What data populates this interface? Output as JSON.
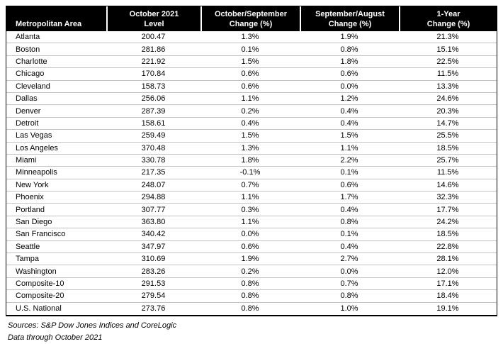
{
  "table": {
    "columns": [
      {
        "line1": "",
        "line2": "Metropolitan Area"
      },
      {
        "line1": "October 2021",
        "line2": "Level"
      },
      {
        "line1": "October/September",
        "line2": "Change (%)"
      },
      {
        "line1": "September/August",
        "line2": "Change (%)"
      },
      {
        "line1": "1-Year",
        "line2": "Change (%)"
      }
    ],
    "rows": [
      {
        "area": "Atlanta",
        "level": "200.47",
        "oct_sep": "1.3%",
        "sep_aug": "1.9%",
        "one_year": "21.3%"
      },
      {
        "area": "Boston",
        "level": "281.86",
        "oct_sep": "0.1%",
        "sep_aug": "0.8%",
        "one_year": "15.1%"
      },
      {
        "area": "Charlotte",
        "level": "221.92",
        "oct_sep": "1.5%",
        "sep_aug": "1.8%",
        "one_year": "22.5%"
      },
      {
        "area": "Chicago",
        "level": "170.84",
        "oct_sep": "0.6%",
        "sep_aug": "0.6%",
        "one_year": "11.5%"
      },
      {
        "area": "Cleveland",
        "level": "158.73",
        "oct_sep": "0.6%",
        "sep_aug": "0.0%",
        "one_year": "13.3%"
      },
      {
        "area": "Dallas",
        "level": "256.06",
        "oct_sep": "1.1%",
        "sep_aug": "1.2%",
        "one_year": "24.6%"
      },
      {
        "area": "Denver",
        "level": "287.39",
        "oct_sep": "0.2%",
        "sep_aug": "0.4%",
        "one_year": "20.3%"
      },
      {
        "area": "Detroit",
        "level": "158.61",
        "oct_sep": "0.4%",
        "sep_aug": "0.4%",
        "one_year": "14.7%"
      },
      {
        "area": "Las Vegas",
        "level": "259.49",
        "oct_sep": "1.5%",
        "sep_aug": "1.5%",
        "one_year": "25.5%"
      },
      {
        "area": "Los Angeles",
        "level": "370.48",
        "oct_sep": "1.3%",
        "sep_aug": "1.1%",
        "one_year": "18.5%"
      },
      {
        "area": "Miami",
        "level": "330.78",
        "oct_sep": "1.8%",
        "sep_aug": "2.2%",
        "one_year": "25.7%"
      },
      {
        "area": "Minneapolis",
        "level": "217.35",
        "oct_sep": "-0.1%",
        "sep_aug": "0.1%",
        "one_year": "11.5%"
      },
      {
        "area": "New York",
        "level": "248.07",
        "oct_sep": "0.7%",
        "sep_aug": "0.6%",
        "one_year": "14.6%"
      },
      {
        "area": "Phoenix",
        "level": "294.88",
        "oct_sep": "1.1%",
        "sep_aug": "1.7%",
        "one_year": "32.3%"
      },
      {
        "area": "Portland",
        "level": "307.77",
        "oct_sep": "0.3%",
        "sep_aug": "0.4%",
        "one_year": "17.7%"
      },
      {
        "area": "San Diego",
        "level": "363.80",
        "oct_sep": "1.1%",
        "sep_aug": "0.8%",
        "one_year": "24.2%"
      },
      {
        "area": "San Francisco",
        "level": "340.42",
        "oct_sep": "0.0%",
        "sep_aug": "0.1%",
        "one_year": "18.5%"
      },
      {
        "area": "Seattle",
        "level": "347.97",
        "oct_sep": "0.6%",
        "sep_aug": "0.4%",
        "one_year": "22.8%"
      },
      {
        "area": "Tampa",
        "level": "310.69",
        "oct_sep": "1.9%",
        "sep_aug": "2.7%",
        "one_year": "28.1%"
      },
      {
        "area": "Washington",
        "level": "283.26",
        "oct_sep": "0.2%",
        "sep_aug": "0.0%",
        "one_year": "12.0%"
      },
      {
        "area": "Composite-10",
        "level": "291.53",
        "oct_sep": "0.8%",
        "sep_aug": "0.7%",
        "one_year": "17.1%"
      },
      {
        "area": "Composite-20",
        "level": "279.54",
        "oct_sep": "0.8%",
        "sep_aug": "0.8%",
        "one_year": "18.4%"
      },
      {
        "area": "U.S. National",
        "level": "273.76",
        "oct_sep": "0.8%",
        "sep_aug": "1.0%",
        "one_year": "19.1%"
      }
    ]
  },
  "footer": {
    "sources": "Sources: S&P Dow Jones Indices and CoreLogic",
    "data_through": "Data through October 2021"
  },
  "colors": {
    "header_bg": "#000000",
    "header_text": "#ffffff",
    "row_divider": "#c4c4c4",
    "table_border": "#000000"
  },
  "chart_data": {
    "type": "table",
    "categories": [
      "Atlanta",
      "Boston",
      "Charlotte",
      "Chicago",
      "Cleveland",
      "Dallas",
      "Denver",
      "Detroit",
      "Las Vegas",
      "Los Angeles",
      "Miami",
      "Minneapolis",
      "New York",
      "Phoenix",
      "Portland",
      "San Diego",
      "San Francisco",
      "Seattle",
      "Tampa",
      "Washington",
      "Composite-10",
      "Composite-20",
      "U.S. National"
    ],
    "series": [
      {
        "name": "October 2021 Level",
        "values": [
          200.47,
          281.86,
          221.92,
          170.84,
          158.73,
          256.06,
          287.39,
          158.61,
          259.49,
          370.48,
          330.78,
          217.35,
          248.07,
          294.88,
          307.77,
          363.8,
          340.42,
          347.97,
          310.69,
          283.26,
          291.53,
          279.54,
          273.76
        ]
      },
      {
        "name": "October/September Change (%)",
        "values": [
          1.3,
          0.1,
          1.5,
          0.6,
          0.6,
          1.1,
          0.2,
          0.4,
          1.5,
          1.3,
          1.8,
          -0.1,
          0.7,
          1.1,
          0.3,
          1.1,
          0.0,
          0.6,
          1.9,
          0.2,
          0.8,
          0.8,
          0.8
        ]
      },
      {
        "name": "September/August Change (%)",
        "values": [
          1.9,
          0.8,
          1.8,
          0.6,
          0.0,
          1.2,
          0.4,
          0.4,
          1.5,
          1.1,
          2.2,
          0.1,
          0.6,
          1.7,
          0.4,
          0.8,
          0.1,
          0.4,
          2.7,
          0.0,
          0.7,
          0.8,
          1.0
        ]
      },
      {
        "name": "1-Year Change (%)",
        "values": [
          21.3,
          15.1,
          22.5,
          11.5,
          13.3,
          24.6,
          20.3,
          14.7,
          25.5,
          18.5,
          25.7,
          11.5,
          14.6,
          32.3,
          17.7,
          24.2,
          18.5,
          22.8,
          28.1,
          12.0,
          17.1,
          18.4,
          19.1
        ]
      }
    ],
    "notes": [
      "Sources: S&P Dow Jones Indices and CoreLogic",
      "Data through October 2021"
    ]
  }
}
